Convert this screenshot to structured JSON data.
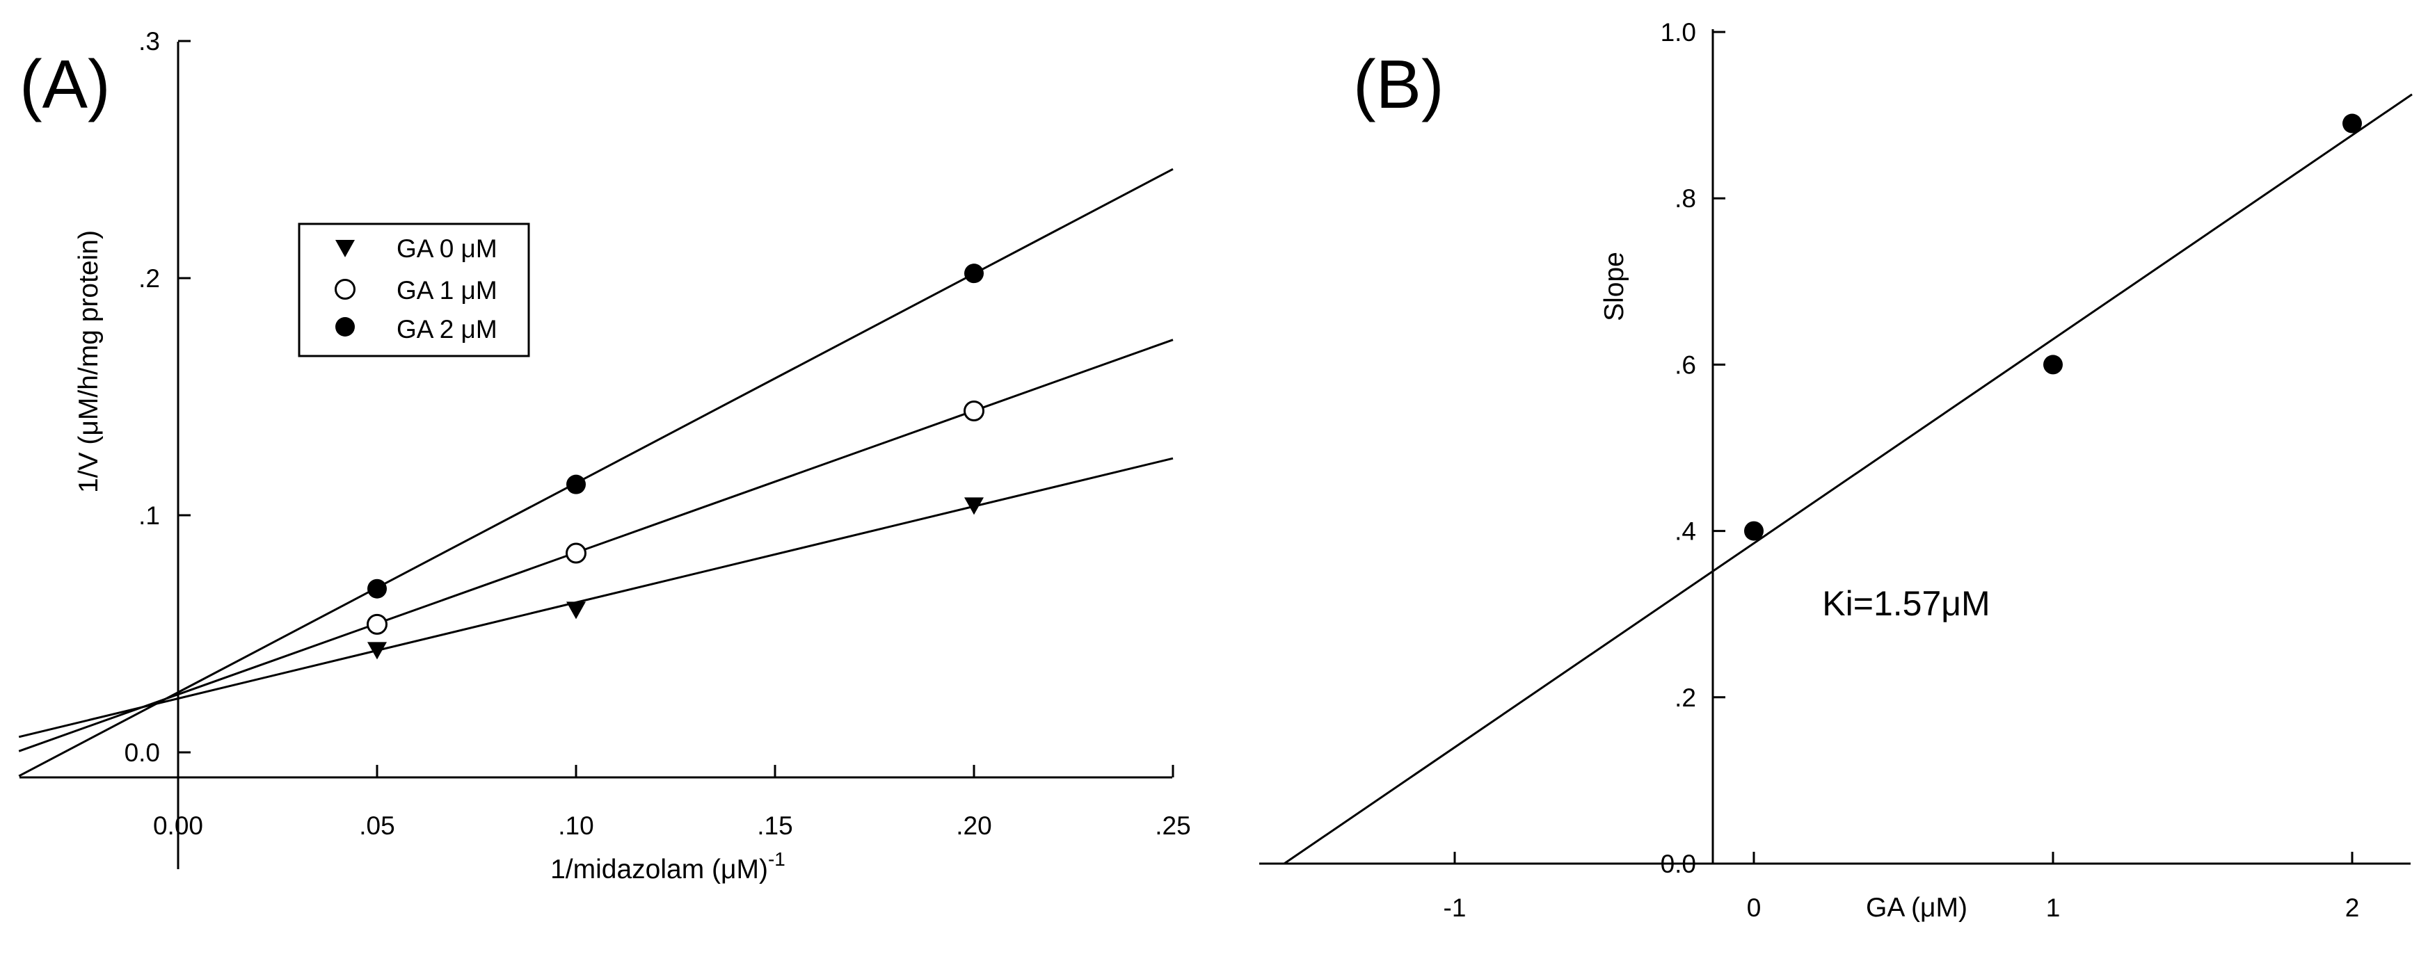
{
  "panels": {
    "A": {
      "label": "(A)"
    },
    "B": {
      "label": "(B)"
    }
  },
  "legend": {
    "entries": [
      "GA 0 μM",
      "GA 1 μM",
      "GA 2 μM"
    ]
  },
  "chart_data": [
    {
      "type": "line",
      "panel": "A",
      "xlabel": "1/midazolam (μM)",
      "xlabel_superscript": "-1",
      "ylabel": "1/V (μM/h/mg protein)",
      "xlim": [
        -0.04,
        0.25
      ],
      "ylim": [
        -0.012,
        0.3
      ],
      "xticks": [
        0.0,
        0.05,
        0.1,
        0.15,
        0.2,
        0.25
      ],
      "xtick_labels": [
        "0.00",
        ".05",
        ".10",
        ".15",
        ".20",
        ".25"
      ],
      "yticks": [
        0.0,
        0.1,
        0.2,
        0.3
      ],
      "ytick_labels": [
        "0.0",
        ".1",
        ".2",
        ".3"
      ],
      "grid": false,
      "legend_position": "upper-left",
      "series": [
        {
          "name": "GA 0 μM",
          "marker": "filled-triangle-down",
          "x": [
            0.05,
            0.1,
            0.2
          ],
          "y": [
            0.043,
            0.06,
            0.104
          ],
          "fit": {
            "x": [
              -0.04,
              0.25
            ],
            "y": [
              0.0065,
              0.124
            ]
          }
        },
        {
          "name": "GA 1 μM",
          "marker": "open-circle",
          "x": [
            0.05,
            0.1,
            0.2
          ],
          "y": [
            0.054,
            0.084,
            0.144
          ],
          "fit": {
            "x": [
              -0.04,
              0.25
            ],
            "y": [
              0.0005,
              0.174
            ]
          }
        },
        {
          "name": "GA 2 μM",
          "marker": "filled-circle",
          "x": [
            0.05,
            0.1,
            0.2
          ],
          "y": [
            0.069,
            0.113,
            0.202
          ],
          "fit": {
            "x": [
              -0.04,
              0.25
            ],
            "y": [
              -0.01,
              0.246
            ]
          }
        }
      ]
    },
    {
      "type": "scatter",
      "panel": "B",
      "xlabel": "GA (μM)",
      "ylabel": "Slope",
      "xlim": [
        -2.15,
        2.2
      ],
      "ylim": [
        0.0,
        1.0
      ],
      "xticks": [
        -1,
        0,
        1,
        2
      ],
      "xtick_labels": [
        "-1",
        "0",
        "1",
        "2"
      ],
      "yticks": [
        0.0,
        0.2,
        0.4,
        0.6,
        0.8,
        1.0
      ],
      "ytick_labels": [
        "0.0",
        ".2",
        ".4",
        ".6",
        ".8",
        "1.0"
      ],
      "grid": false,
      "annotation": "Ki=1.57μM",
      "series": [
        {
          "marker": "filled-circle",
          "x": [
            0,
            1,
            2
          ],
          "y": [
            0.4,
            0.6,
            0.89
          ],
          "fit": {
            "x": [
              -1.57,
              2.2
            ],
            "y": [
              0.0,
              0.925
            ]
          }
        }
      ]
    }
  ]
}
